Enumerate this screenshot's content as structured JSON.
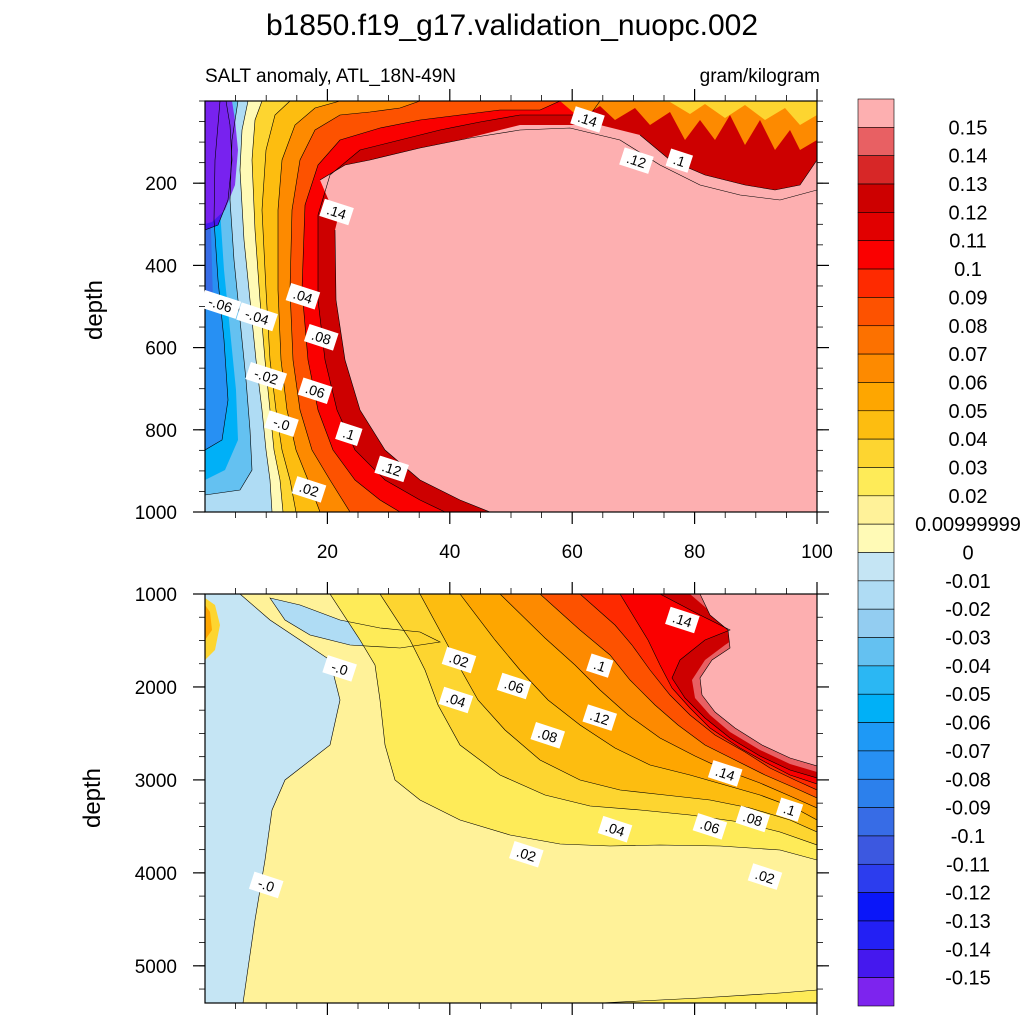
{
  "chart_data": {
    "type": "contour",
    "title": "b1850.f19_g17.validation_nuopc.002",
    "subtitle_left": "SALT anomaly, ATL_18N-49N",
    "subtitle_right": "gram/kilogram",
    "panels": [
      {
        "id": "upper",
        "ylabel": "depth",
        "ylim": [
          1000,
          0
        ],
        "xlim": [
          0,
          100
        ],
        "y_ticks": [
          "200",
          "400",
          "600",
          "800",
          "1000"
        ],
        "y_tick_values": [
          200,
          400,
          600,
          800,
          1000
        ],
        "x_ticks": [
          "20",
          "40",
          "60",
          "80",
          "100"
        ],
        "x_tick_values": [
          20,
          40,
          60,
          80,
          100
        ],
        "contour_labels": [
          {
            "text": ".14",
            "x": 62.5,
            "y": 45
          },
          {
            "text": ".12",
            "x": 70.5,
            "y": 145
          },
          {
            "text": ".1",
            "x": 77.5,
            "y": 145
          },
          {
            "text": ".14",
            "x": 21.5,
            "y": 270
          },
          {
            "text": "-.06",
            "x": 2.5,
            "y": 495
          },
          {
            "text": "-.04",
            "x": 8.5,
            "y": 525
          },
          {
            "text": ".04",
            "x": 16,
            "y": 475
          },
          {
            "text": ".08",
            "x": 19,
            "y": 575
          },
          {
            "text": "-.02",
            "x": 10,
            "y": 670
          },
          {
            "text": ".06",
            "x": 18,
            "y": 705
          },
          {
            "text": "-.0",
            "x": 12.5,
            "y": 785
          },
          {
            "text": ".1",
            "x": 23.5,
            "y": 810
          },
          {
            "text": ".12",
            "x": 30.5,
            "y": 895
          },
          {
            "text": ".02",
            "x": 17,
            "y": 945
          }
        ]
      },
      {
        "id": "lower",
        "ylabel": "depth",
        "ylim": [
          5400,
          1000
        ],
        "xlim": [
          0,
          100
        ],
        "y_ticks": [
          "1000",
          "2000",
          "3000",
          "4000",
          "5000"
        ],
        "y_tick_values": [
          1000,
          2000,
          3000,
          4000,
          5000
        ],
        "contour_labels": [
          {
            "text": ".14",
            "x": 78,
            "y": 1280
          },
          {
            "text": "-.0",
            "x": 22,
            "y": 1800
          },
          {
            "text": ".02",
            "x": 41.5,
            "y": 1710
          },
          {
            "text": ".1",
            "x": 64.5,
            "y": 1770
          },
          {
            "text": ".06",
            "x": 50.5,
            "y": 1990
          },
          {
            "text": ".04",
            "x": 41,
            "y": 2140
          },
          {
            "text": ".12",
            "x": 64.5,
            "y": 2330
          },
          {
            "text": ".08",
            "x": 56,
            "y": 2520
          },
          {
            "text": ".14",
            "x": 85,
            "y": 2930
          },
          {
            "text": ".1",
            "x": 95.5,
            "y": 3320
          },
          {
            "text": ".08",
            "x": 89.5,
            "y": 3420
          },
          {
            "text": ".06",
            "x": 82.5,
            "y": 3500
          },
          {
            "text": ".04",
            "x": 67,
            "y": 3530
          },
          {
            "text": ".02",
            "x": 52.5,
            "y": 3800
          },
          {
            "text": ".02",
            "x": 91.5,
            "y": 4040
          },
          {
            "text": "-.0",
            "x": 10,
            "y": 4130
          }
        ]
      }
    ],
    "colorbar": {
      "levels": [
        "0.15",
        "0.14",
        "0.13",
        "0.12",
        "0.11",
        "0.1",
        "0.09",
        "0.08",
        "0.07",
        "0.06",
        "0.05",
        "0.04",
        "0.03",
        "0.02",
        "0.00999999",
        "0",
        "-0.01",
        "-0.02",
        "-0.03",
        "-0.04",
        "-0.05",
        "-0.06",
        "-0.07",
        "-0.08",
        "-0.09",
        "-0.1",
        "-0.11",
        "-0.12",
        "-0.13",
        "-0.14",
        "-0.15"
      ],
      "colors": [
        "#fdafb0",
        "#e86063",
        "#d72727",
        "#cd0000",
        "#e10000",
        "#fa0000",
        "#fe2a00",
        "#fd5200",
        "#fc7100",
        "#fd8a00",
        "#fea600",
        "#fdbd10",
        "#fdd530",
        "#feeb58",
        "#fff299",
        "#fffab6",
        "#c5e5f4",
        "#afdcf4",
        "#93cdf1",
        "#64c1f1",
        "#2bb7f3",
        "#00b0f7",
        "#1e99f6",
        "#2790f3",
        "#2c80ec",
        "#376ce6",
        "#3c58e0",
        "#2c3dee",
        "#0a16f9",
        "#2320f4",
        "#4518ee",
        "#7d24ee"
      ]
    }
  }
}
